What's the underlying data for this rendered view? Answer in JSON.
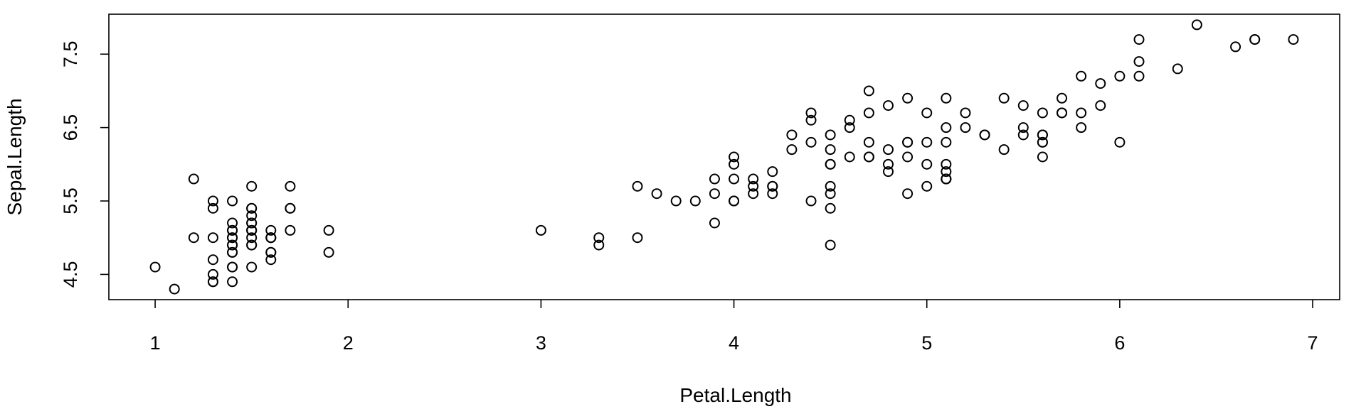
{
  "chart_data": {
    "type": "scatter",
    "title": "",
    "xlabel": "Petal.Length",
    "ylabel": "Sepal.Length",
    "xlim": [
      0.76,
      7.14
    ],
    "ylim": [
      4.156,
      8.044
    ],
    "xticks": [
      1,
      2,
      3,
      4,
      5,
      6,
      7
    ],
    "yticks": [
      4.5,
      5.5,
      6.5,
      7.5
    ],
    "xtick_labels": [
      "1",
      "2",
      "3",
      "4",
      "5",
      "6",
      "7"
    ],
    "ytick_labels": [
      "4.5",
      "5.5",
      "6.5",
      "7.5"
    ],
    "grid": false,
    "legend": "none",
    "point_color": "#000000",
    "x": [
      1.4,
      1.4,
      1.3,
      1.5,
      1.4,
      1.7,
      1.4,
      1.5,
      1.4,
      1.5,
      1.5,
      1.6,
      1.4,
      1.1,
      1.2,
      1.5,
      1.3,
      1.4,
      1.7,
      1.5,
      1.7,
      1.5,
      1.0,
      1.7,
      1.9,
      1.6,
      1.6,
      1.5,
      1.4,
      1.6,
      1.6,
      1.5,
      1.5,
      1.4,
      1.5,
      1.2,
      1.3,
      1.4,
      1.3,
      1.5,
      1.3,
      1.3,
      1.3,
      1.6,
      1.9,
      1.4,
      1.6,
      1.4,
      1.5,
      1.4,
      4.7,
      4.5,
      4.9,
      4.0,
      4.6,
      4.5,
      4.7,
      3.3,
      4.6,
      3.9,
      3.5,
      4.2,
      4.0,
      4.7,
      3.6,
      4.4,
      4.5,
      4.1,
      4.5,
      3.9,
      4.8,
      4.0,
      4.9,
      4.7,
      4.3,
      4.4,
      4.8,
      5.0,
      4.5,
      3.5,
      3.8,
      3.7,
      3.9,
      5.1,
      4.5,
      4.5,
      4.7,
      4.4,
      4.1,
      4.0,
      4.4,
      4.6,
      4.0,
      3.3,
      4.2,
      4.2,
      4.2,
      4.3,
      3.0,
      4.1,
      6.0,
      5.1,
      5.9,
      5.6,
      5.8,
      6.6,
      4.5,
      6.3,
      5.8,
      6.1,
      5.1,
      5.3,
      5.5,
      5.0,
      5.1,
      5.3,
      5.5,
      6.7,
      6.9,
      5.0,
      5.7,
      4.9,
      6.7,
      4.9,
      5.7,
      6.0,
      4.8,
      4.9,
      5.6,
      5.8,
      6.1,
      6.4,
      5.6,
      5.1,
      5.6,
      6.1,
      5.6,
      5.5,
      4.8,
      5.4,
      5.6,
      5.1,
      5.1,
      5.9,
      5.7,
      5.2,
      5.0,
      5.2,
      5.4,
      5.1
    ],
    "y": [
      5.1,
      4.9,
      4.7,
      4.6,
      5.0,
      5.4,
      4.6,
      5.0,
      4.4,
      4.9,
      5.4,
      4.8,
      4.8,
      4.3,
      5.8,
      5.7,
      5.4,
      5.1,
      5.7,
      5.1,
      5.4,
      5.1,
      4.6,
      5.1,
      4.8,
      5.0,
      5.0,
      5.2,
      5.2,
      4.7,
      4.8,
      5.4,
      5.2,
      5.5,
      4.9,
      5.0,
      5.5,
      4.9,
      4.4,
      5.1,
      5.0,
      4.5,
      4.4,
      5.0,
      5.1,
      4.8,
      5.1,
      4.6,
      5.3,
      5.0,
      7.0,
      6.4,
      6.9,
      5.5,
      6.5,
      5.7,
      6.3,
      4.9,
      6.6,
      5.2,
      5.0,
      5.9,
      6.0,
      6.1,
      5.6,
      6.7,
      5.6,
      5.8,
      6.2,
      5.6,
      5.9,
      6.1,
      6.3,
      6.1,
      6.4,
      6.6,
      6.8,
      6.7,
      6.0,
      5.7,
      5.5,
      5.5,
      5.8,
      6.0,
      5.4,
      6.0,
      6.7,
      6.3,
      5.6,
      5.5,
      5.5,
      6.1,
      5.8,
      5.0,
      5.6,
      5.7,
      5.7,
      6.2,
      5.1,
      5.7,
      6.3,
      5.8,
      7.1,
      6.3,
      6.5,
      7.6,
      4.9,
      7.3,
      6.7,
      7.2,
      6.5,
      6.4,
      6.8,
      5.7,
      5.8,
      6.4,
      6.5,
      7.7,
      7.7,
      6.0,
      6.9,
      5.6,
      7.7,
      6.3,
      6.7,
      7.2,
      6.2,
      6.1,
      6.4,
      7.2,
      7.4,
      7.9,
      6.4,
      6.3,
      6.1,
      7.7,
      6.3,
      6.4,
      6.0,
      6.9,
      6.7,
      6.9,
      5.8,
      6.8,
      6.7,
      6.7,
      6.3,
      6.5,
      6.2,
      5.9
    ]
  }
}
